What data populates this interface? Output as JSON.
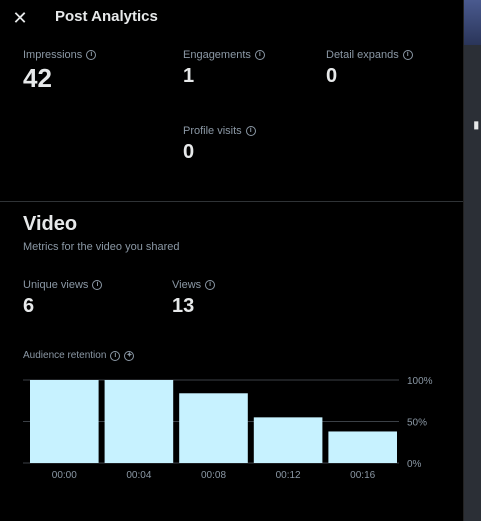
{
  "header": {
    "title": "Post Analytics"
  },
  "metrics": {
    "impressions": {
      "label": "Impressions",
      "value": "42"
    },
    "engagements": {
      "label": "Engagements",
      "value": "1"
    },
    "detail_expands": {
      "label": "Detail expands",
      "value": "0"
    },
    "profile_visits": {
      "label": "Profile visits",
      "value": "0"
    }
  },
  "video": {
    "title": "Video",
    "subtitle": "Metrics for the video you shared",
    "unique_views": {
      "label": "Unique views",
      "value": "6"
    },
    "views": {
      "label": "Views",
      "value": "13"
    }
  },
  "chart_data": {
    "type": "bar",
    "title": "Audience retention",
    "categories": [
      "00:00",
      "00:04",
      "00:08",
      "00:12",
      "00:16"
    ],
    "values": [
      100,
      100,
      84,
      55,
      38
    ],
    "yticks": [
      "100%",
      "50%",
      "0%"
    ],
    "ylim": [
      0,
      100
    ],
    "grid": true,
    "color": "#c7f2ff"
  },
  "colors": {
    "background": "#000000",
    "text": "#e7e9ea",
    "muted": "#8b98a5",
    "bar": "#c7f2ff"
  },
  "icons": {
    "close": "close-icon",
    "info": "info-icon"
  }
}
